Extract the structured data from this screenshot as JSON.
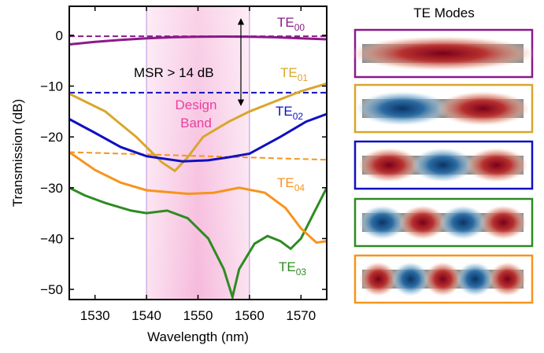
{
  "chart_data": {
    "type": "line",
    "xlabel": "Wavelength (nm)",
    "ylabel": "Transmission (dB)",
    "xlim": [
      1525,
      1575
    ],
    "ylim": [
      -52,
      5.7
    ],
    "xticks": [
      1530,
      1540,
      1550,
      1560,
      1570
    ],
    "yticks": [
      {
        "value": 0,
        "label": "0"
      },
      {
        "value": -10,
        "label": "−10"
      },
      {
        "value": -20,
        "label": "−20"
      },
      {
        "value": -30,
        "label": "−30"
      },
      {
        "value": -40,
        "label": "−40"
      },
      {
        "value": -50,
        "label": "−50"
      }
    ],
    "band": [
      1540,
      1560
    ],
    "band_label": [
      "Design",
      "Band"
    ],
    "annotation": "MSR > 14 dB",
    "panel_title": "TE Modes",
    "series": [
      {
        "name": "TE",
        "subscript": "00",
        "color": "#8b1a89",
        "x": [
          1525,
          1530,
          1535,
          1540,
          1545,
          1550,
          1555,
          1560,
          1565,
          1570,
          1575
        ],
        "values": [
          -1.8,
          -1.3,
          -0.9,
          -0.6,
          -0.4,
          -0.3,
          -0.25,
          -0.3,
          -0.4,
          -0.6,
          -0.8
        ],
        "dashed": {
          "x": [
            1525,
            1575
          ],
          "values": [
            -0.2,
            -0.2
          ]
        }
      },
      {
        "name": "TE",
        "subscript": "01",
        "color": "#d9a62e",
        "x": [
          1525,
          1528,
          1532,
          1535,
          1538,
          1541,
          1543,
          1545.5,
          1548,
          1551,
          1556,
          1560,
          1565,
          1570,
          1575
        ],
        "values": [
          -11.5,
          -13,
          -15,
          -17.5,
          -20,
          -23,
          -25,
          -26.7,
          -24,
          -20,
          -17,
          -15,
          -13,
          -11,
          -9.5
        ],
        "dashed": null
      },
      {
        "name": "TE",
        "subscript": "02",
        "color": "#1010c0",
        "x": [
          1525,
          1530,
          1535,
          1540,
          1547,
          1552,
          1556,
          1560,
          1566,
          1571,
          1575
        ],
        "values": [
          -16.5,
          -19.2,
          -22,
          -23.8,
          -24.8,
          -24.6,
          -24,
          -23.3,
          -20,
          -17,
          -15.5
        ],
        "dashed": {
          "x": [
            1525,
            1575
          ],
          "values": [
            -11.3,
            -11.3
          ]
        }
      },
      {
        "name": "TE",
        "subscript": "03",
        "color": "#2e8b22",
        "x": [
          1525,
          1528,
          1532,
          1537,
          1540,
          1544,
          1548,
          1552,
          1555,
          1556.7,
          1558,
          1561,
          1563.5,
          1566,
          1568,
          1570,
          1572.5,
          1575
        ],
        "values": [
          -30,
          -31.5,
          -33,
          -34.5,
          -35,
          -34.5,
          -36,
          -40,
          -46,
          -51.5,
          -46,
          -41,
          -39.5,
          -40.5,
          -42,
          -40,
          -35,
          -30
        ],
        "dashed": null
      },
      {
        "name": "TE",
        "subscript": "04",
        "color": "#f7941d",
        "x": [
          1525,
          1530,
          1535,
          1540,
          1548,
          1553,
          1558,
          1563,
          1567,
          1570,
          1573,
          1575
        ],
        "values": [
          -23,
          -26.5,
          -29,
          -30.5,
          -31.2,
          -31,
          -30,
          -31,
          -34,
          -38,
          -40.8,
          -40.5
        ],
        "dashed": {
          "x": [
            1525,
            1575
          ],
          "values": [
            -23,
            -24.5
          ]
        }
      }
    ]
  }
}
